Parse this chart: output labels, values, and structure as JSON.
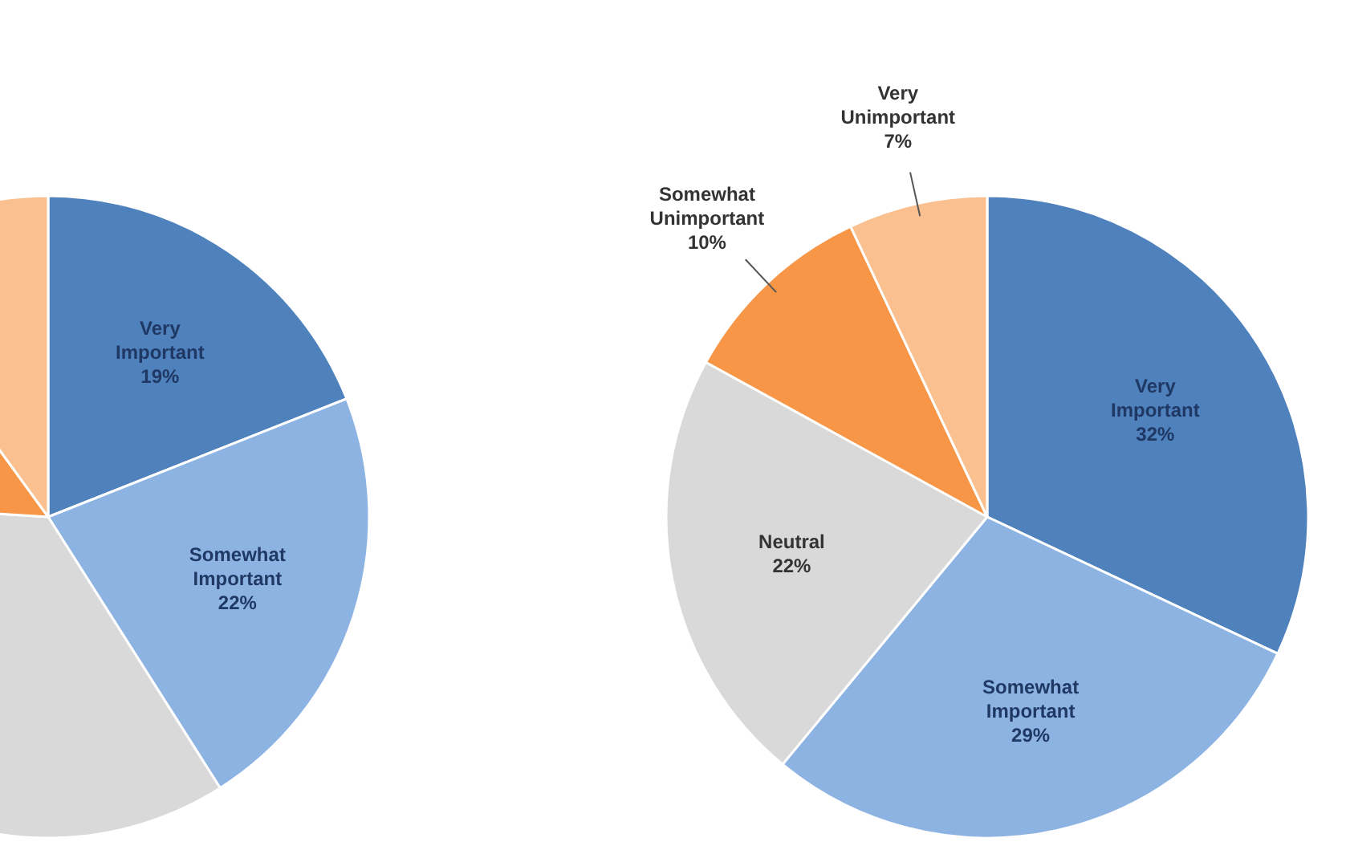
{
  "chart_data": [
    {
      "type": "pie",
      "categories": [
        "Very Important",
        "Somewhat Important",
        null,
        null,
        null
      ],
      "values": [
        19,
        22,
        35,
        14,
        10
      ],
      "value_labels": [
        "19%",
        "22%",
        null,
        null,
        null
      ],
      "colors": [
        "#4f81bd",
        "#8db3e2",
        "#d9d9d9",
        "#f79646",
        "#fac090"
      ]
    },
    {
      "type": "pie",
      "categories": [
        "Very Important",
        "Somewhat Important",
        "Neutral",
        "Somewhat Unimportant",
        "Very Unimportant"
      ],
      "values": [
        32,
        29,
        22,
        10,
        7
      ],
      "value_labels": [
        "32%",
        "29%",
        "22%",
        "10%",
        "7%"
      ],
      "colors": [
        "#4f81bd",
        "#8db3e2",
        "#d9d9d9",
        "#f79646",
        "#fac090"
      ]
    }
  ]
}
